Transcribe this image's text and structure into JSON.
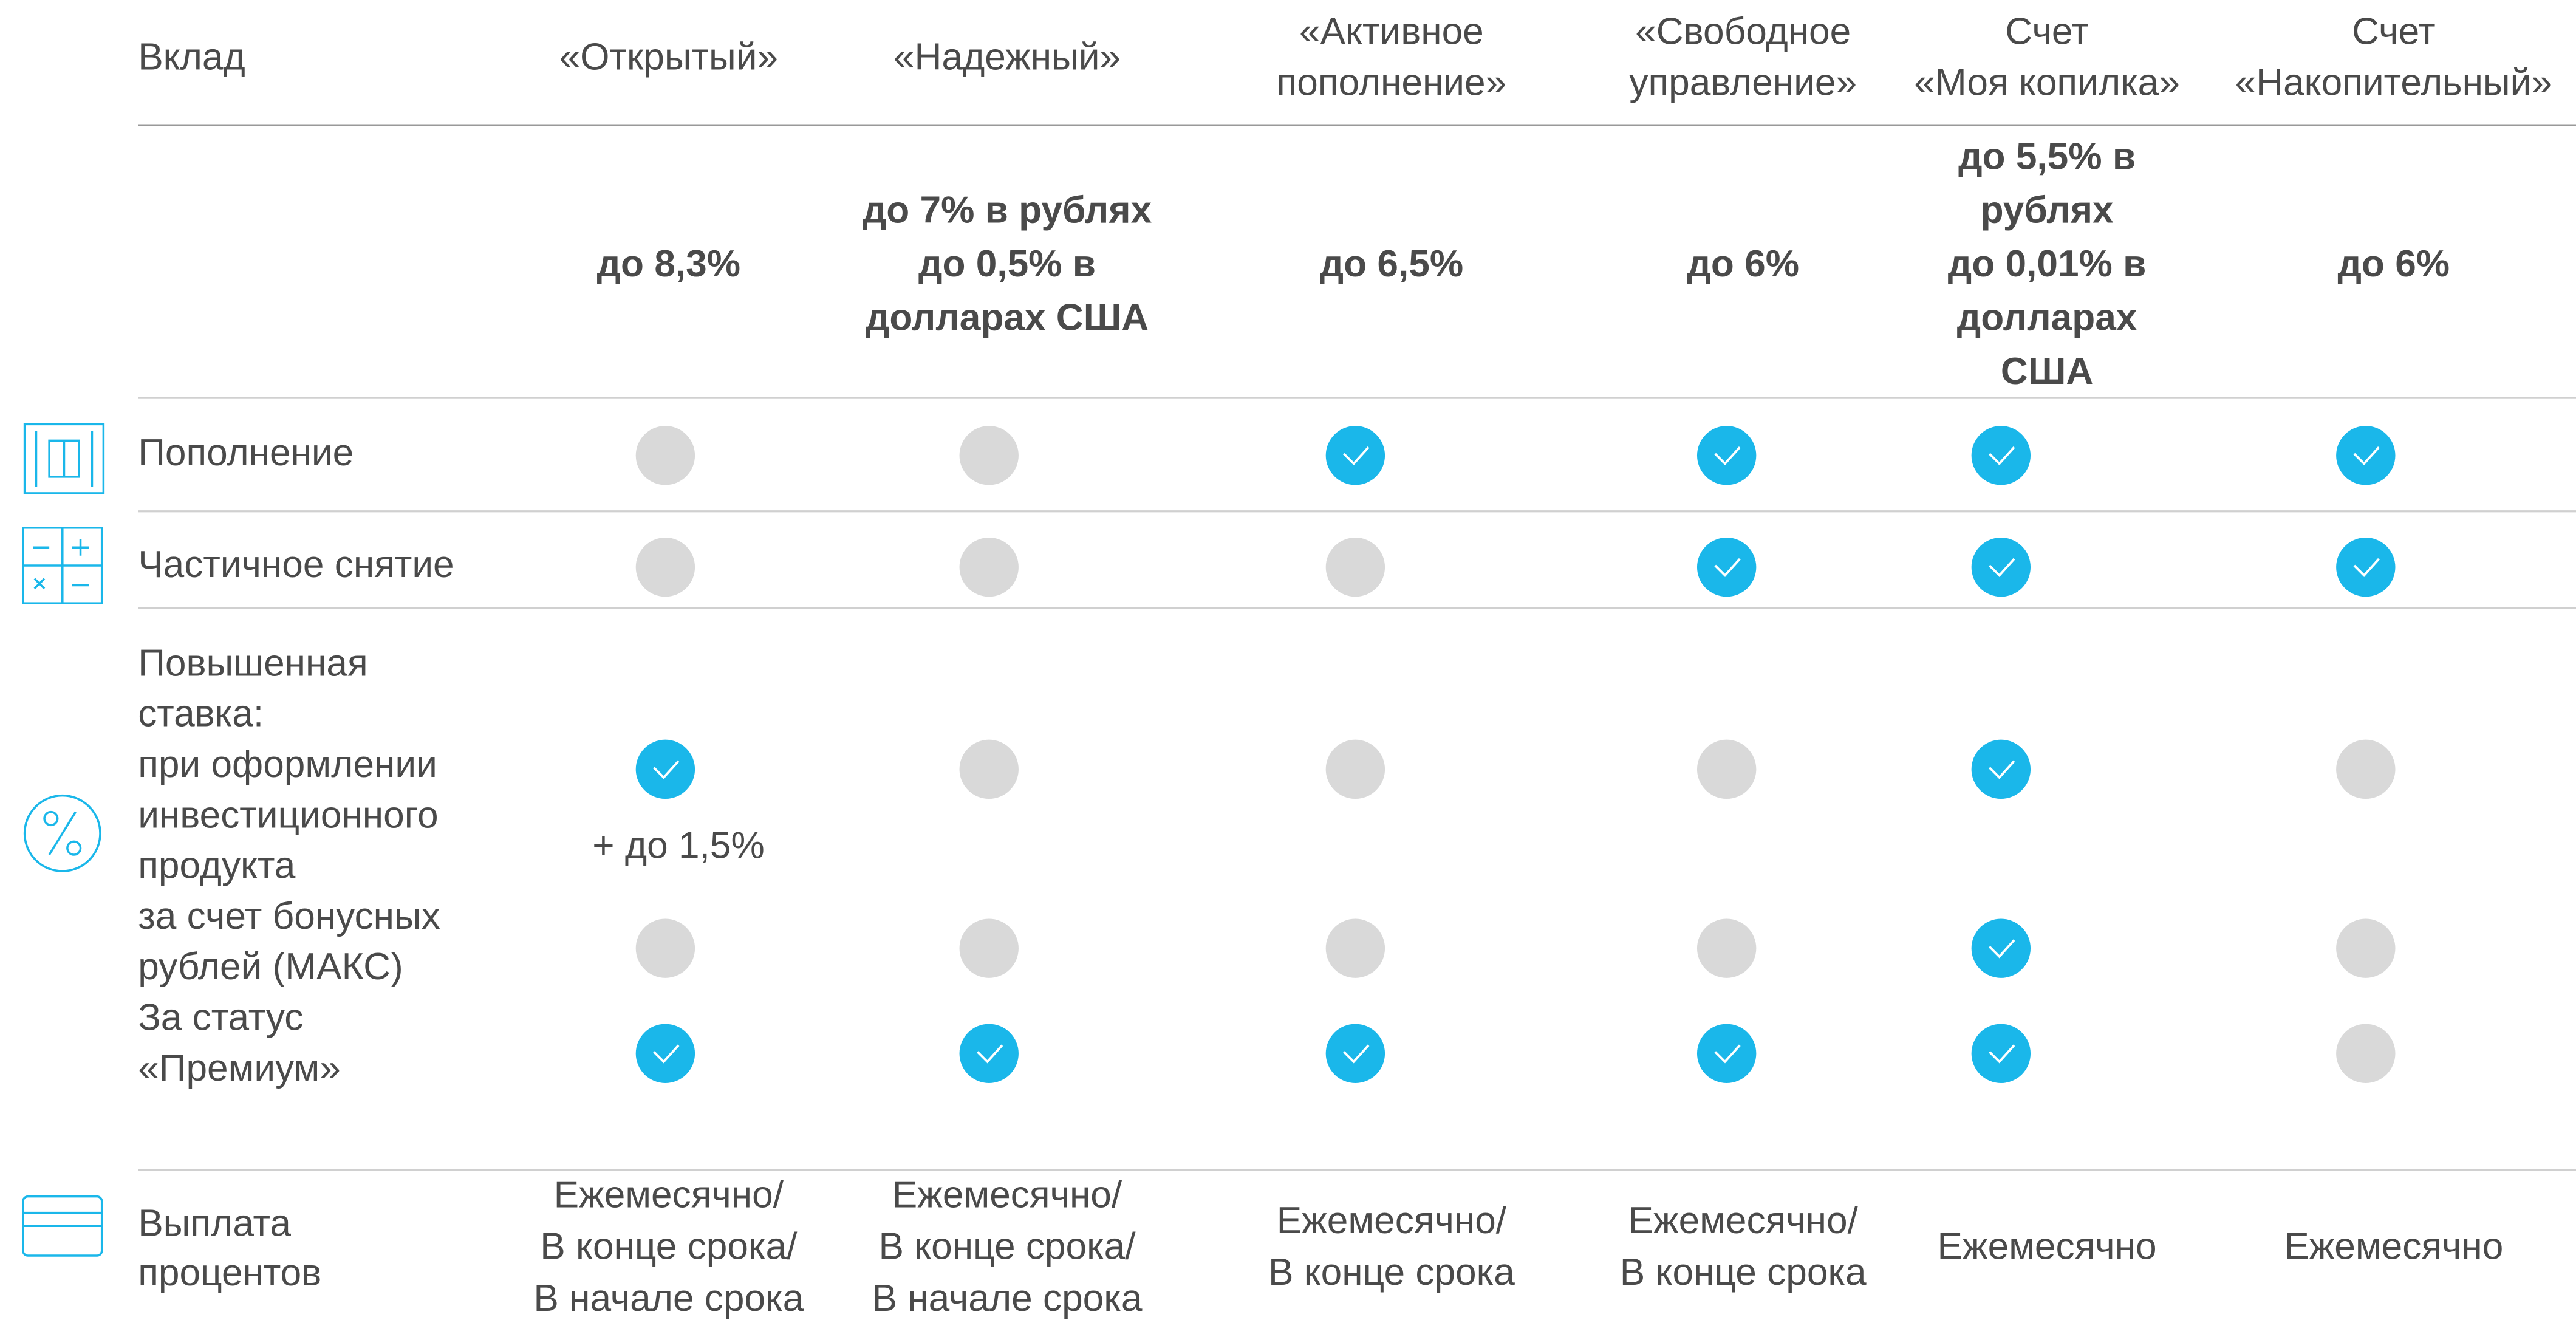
{
  "header": {
    "label": "Вклад",
    "columns": [
      [
        "«Открытый»"
      ],
      [
        "«Надежный»"
      ],
      [
        "«Активное",
        "пополнение»"
      ],
      [
        "«Свободное",
        "управление»"
      ],
      [
        "Счет",
        "«Моя копилка»"
      ],
      [
        "Счет",
        "«Накопительный»"
      ]
    ]
  },
  "rates": [
    [
      "до 8,3%"
    ],
    [
      "до 7% в рублях",
      "до 0,5% в",
      "долларах США"
    ],
    [
      "до 6,5%"
    ],
    [
      "до 6%"
    ],
    [
      "до 5,5% в",
      "рублях",
      "до 0,01% в",
      "долларах",
      "США"
    ],
    [
      "до 6%"
    ]
  ],
  "features": [
    {
      "label": "Пополнение",
      "checks": [
        false,
        false,
        true,
        true,
        true,
        true
      ]
    },
    {
      "label": "Частичное снятие",
      "checks": [
        false,
        false,
        false,
        true,
        true,
        true
      ]
    }
  ],
  "bonus": {
    "label": [
      "Повышенная",
      "ставка:",
      "при оформлении",
      "инвестиционного",
      "продукта",
      "за счет бонусных",
      "рублей (МАКС)",
      "За статус",
      "«Премиум»"
    ],
    "options": [
      {
        "checks": [
          true,
          false,
          false,
          false,
          true,
          false
        ],
        "note": "+ до 1,5%"
      },
      {
        "checks": [
          false,
          false,
          false,
          false,
          true,
          false
        ]
      },
      {
        "checks": [
          true,
          true,
          true,
          true,
          true,
          false
        ]
      }
    ]
  },
  "payout": {
    "label": [
      "Выплата",
      "процентов"
    ],
    "values": [
      [
        "Ежемесячно/",
        "В конце срока/",
        "В начале срока"
      ],
      [
        "Ежемесячно/",
        "В конце срока/",
        "В начале срока"
      ],
      [
        "Ежемесячно/",
        "В конце срока"
      ],
      [
        "Ежемесячно/",
        "В конце срока"
      ],
      [
        "Ежемесячно"
      ],
      [
        "Ежемесячно"
      ]
    ]
  }
}
